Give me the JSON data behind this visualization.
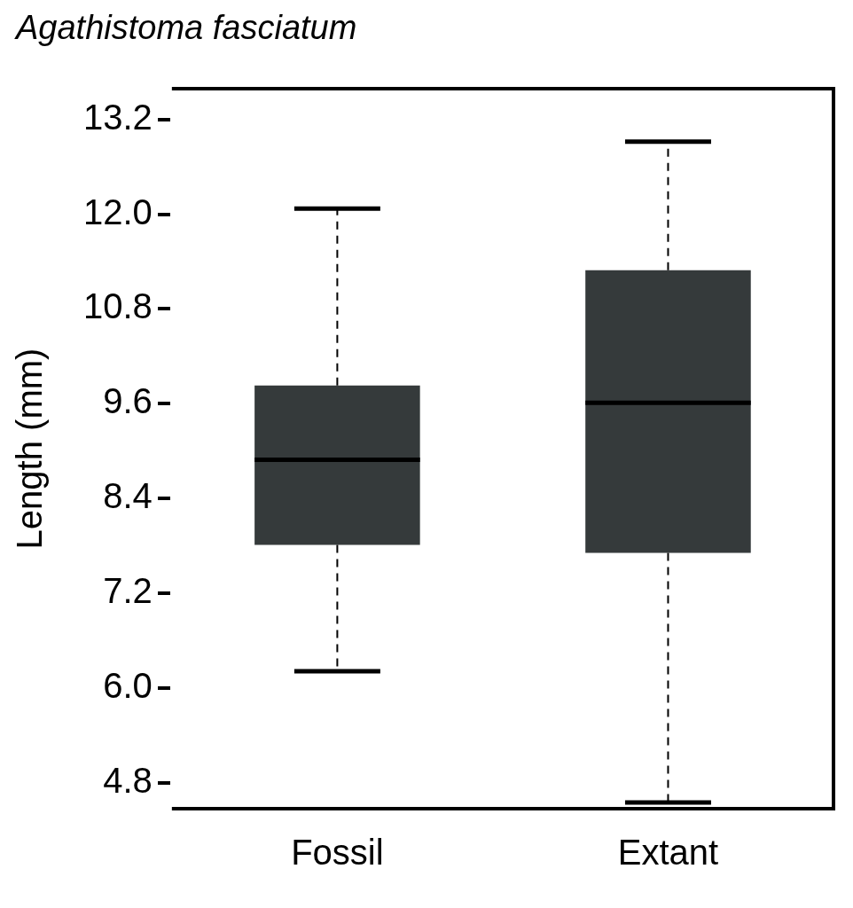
{
  "chart_data": {
    "type": "box",
    "title": "Agathistoma fasciatum",
    "ylabel": "Length (mm)",
    "categories": [
      "Fossil",
      "Extant"
    ],
    "color": "#353a3b",
    "boxes": [
      {
        "low": 6.21,
        "q1": 7.81,
        "median": 8.89,
        "q3": 9.83,
        "high": 12.07
      },
      {
        "low": 4.55,
        "q1": 7.71,
        "median": 9.61,
        "q3": 11.29,
        "high": 12.92
      }
    ],
    "ylim": [
      4.47,
      13.59
    ],
    "yticks": [
      {
        "value": 4.8,
        "label": "4.8"
      },
      {
        "value": 6,
        "label": "6.0"
      },
      {
        "value": 7.2,
        "label": "7.2"
      },
      {
        "value": 8.4,
        "label": "8.4"
      },
      {
        "value": 9.6,
        "label": "9.6"
      },
      {
        "value": 10.8,
        "label": "10.8"
      },
      {
        "value": 12,
        "label": "12.0"
      },
      {
        "value": 13.2,
        "label": "13.2"
      }
    ],
    "grid": false,
    "legend": false
  }
}
